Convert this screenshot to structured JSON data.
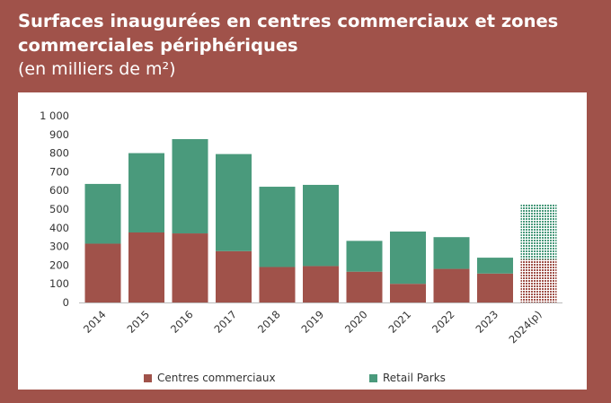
{
  "title": "Surfaces inaugurées en centres commerciaux et zones commerciales périphériques",
  "subtitle": "(en milliers de m²)",
  "colors": {
    "background": "#a0524a",
    "centres": "#a0524a",
    "retail": "#4a9a7c",
    "panel": "#ffffff"
  },
  "chart_data": {
    "type": "bar",
    "stacked": true,
    "categories": [
      "2014",
      "2015",
      "2016",
      "2017",
      "2018",
      "2019",
      "2020",
      "2021",
      "2022",
      "2023",
      "2024(p)"
    ],
    "series": [
      {
        "name": "Centres commerciaux",
        "values": [
          315,
          375,
          370,
          275,
          190,
          195,
          165,
          100,
          180,
          155,
          230
        ]
      },
      {
        "name": "Retail Parks",
        "values": [
          320,
          425,
          505,
          520,
          430,
          435,
          165,
          280,
          170,
          85,
          295
        ]
      }
    ],
    "projected_categories": [
      "2024(p)"
    ],
    "ylim": [
      0,
      1000
    ],
    "yticks": [
      "0",
      "100",
      "200",
      "300",
      "400",
      "500",
      "600",
      "700",
      "800",
      "900",
      "1 000"
    ],
    "legend_position": "bottom",
    "grid": false
  }
}
